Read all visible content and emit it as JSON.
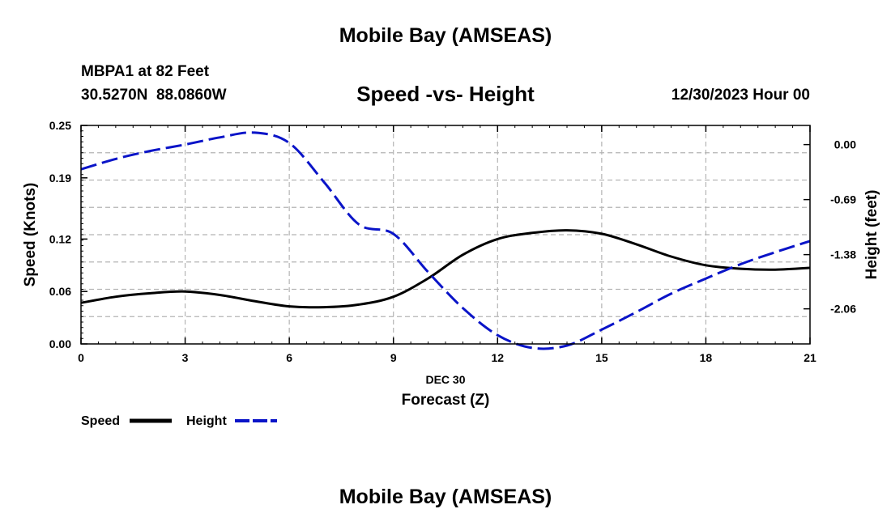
{
  "page_title": "Mobile Bay (AMSEAS)",
  "station": {
    "name_depth": "MBPA1 at 82 Feet",
    "coords": "30.5270N  88.0860W"
  },
  "plot_title": "Speed -vs- Height",
  "datetime": "12/30/2023 Hour 00",
  "footer_title": "Mobile Bay (AMSEAS)",
  "legend": {
    "speed_label": "Speed",
    "height_label": "Height"
  },
  "chart_data": {
    "type": "line",
    "x_label_date": "DEC 30",
    "xlabel": "Forecast (Z)",
    "ylabel_left": "Speed (Knots)",
    "ylabel_right": "Height (feet)",
    "x_ticks": [
      "0",
      "3",
      "6",
      "9",
      "12",
      "15",
      "18",
      "21"
    ],
    "y_left_ticks": [
      "0.00",
      "0.06",
      "0.12",
      "0.19",
      "0.25"
    ],
    "y_right_ticks": [
      "0.00",
      "-0.69",
      "-1.38",
      "-2.06"
    ],
    "xlim": [
      0,
      21
    ],
    "ylim_left": [
      0,
      0.25
    ],
    "ylim_right": [
      -2.5,
      0.24
    ],
    "grid": true,
    "colors": {
      "speed": "#000000",
      "height": "#0a14c8"
    },
    "series": [
      {
        "name": "Speed",
        "axis": "left",
        "style": "solid",
        "x": [
          0,
          1,
          2,
          3,
          4,
          5,
          6,
          7,
          8,
          9,
          10,
          11,
          12,
          13,
          14,
          15,
          16,
          17,
          18,
          19,
          20,
          21
        ],
        "y": [
          0.047,
          0.054,
          0.058,
          0.06,
          0.056,
          0.049,
          0.043,
          0.042,
          0.045,
          0.054,
          0.075,
          0.102,
          0.12,
          0.127,
          0.13,
          0.126,
          0.114,
          0.1,
          0.09,
          0.086,
          0.085,
          0.087
        ]
      },
      {
        "name": "Height",
        "axis": "right",
        "style": "dashed",
        "x": [
          0,
          1,
          2,
          3,
          4,
          5,
          6,
          7,
          8,
          9,
          10,
          11,
          12,
          13,
          14,
          15,
          16,
          17,
          18,
          19,
          20,
          21
        ],
        "y": [
          -0.31,
          -0.18,
          -0.08,
          0.0,
          0.09,
          0.15,
          0.02,
          -0.47,
          -1.0,
          -1.12,
          -1.6,
          -2.05,
          -2.39,
          -2.55,
          -2.52,
          -2.32,
          -2.1,
          -1.87,
          -1.68,
          -1.5,
          -1.35,
          -1.21
        ]
      }
    ]
  }
}
